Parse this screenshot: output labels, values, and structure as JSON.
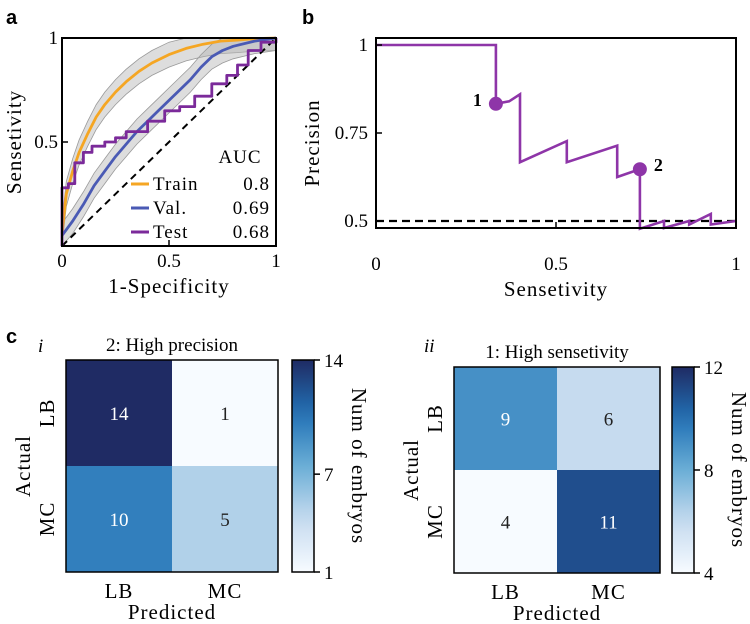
{
  "panels": {
    "a": "a",
    "b": "b",
    "c": "c",
    "ci": "i",
    "cii": "ii"
  },
  "chart_data": [
    {
      "type": "line",
      "id": "roc",
      "title": "",
      "xlabel": "1-Specificity",
      "ylabel": "Sensetivity",
      "xlim": [
        0,
        1
      ],
      "ylim": [
        0,
        1
      ],
      "xticks": [
        {
          "v": 0,
          "label": "0"
        },
        {
          "v": 0.5,
          "label": "0.5"
        },
        {
          "v": 1,
          "label": "1"
        }
      ],
      "yticks": [
        {
          "v": 0.5,
          "label": "0.5"
        },
        {
          "v": 1,
          "label": "1"
        }
      ],
      "legend": {
        "title": "AUC",
        "position": "bottom-right"
      },
      "reference_line": [
        [
          0,
          0
        ],
        [
          1,
          1
        ]
      ],
      "series": [
        {
          "name": "Train",
          "auc": "0.8",
          "color": "#f5a623",
          "band": true,
          "points": [
            [
              0,
              0.06
            ],
            [
              0.02,
              0.25
            ],
            [
              0.05,
              0.36
            ],
            [
              0.08,
              0.45
            ],
            [
              0.12,
              0.54
            ],
            [
              0.16,
              0.62
            ],
            [
              0.2,
              0.68
            ],
            [
              0.25,
              0.74
            ],
            [
              0.3,
              0.79
            ],
            [
              0.36,
              0.84
            ],
            [
              0.42,
              0.88
            ],
            [
              0.5,
              0.92
            ],
            [
              0.58,
              0.95
            ],
            [
              0.66,
              0.97
            ],
            [
              0.74,
              0.985
            ],
            [
              0.82,
              0.99
            ],
            [
              0.9,
              0.997
            ],
            [
              1,
              1
            ]
          ]
        },
        {
          "name": "Val.",
          "auc": "0.69",
          "color": "#4a5ab4",
          "band": true,
          "points": [
            [
              0,
              0.05
            ],
            [
              0.05,
              0.12
            ],
            [
              0.1,
              0.2
            ],
            [
              0.15,
              0.29
            ],
            [
              0.2,
              0.36
            ],
            [
              0.25,
              0.43
            ],
            [
              0.3,
              0.49
            ],
            [
              0.35,
              0.55
            ],
            [
              0.4,
              0.6
            ],
            [
              0.45,
              0.65
            ],
            [
              0.5,
              0.7
            ],
            [
              0.55,
              0.75
            ],
            [
              0.6,
              0.8
            ],
            [
              0.65,
              0.86
            ],
            [
              0.7,
              0.91
            ],
            [
              0.75,
              0.94
            ],
            [
              0.8,
              0.96
            ],
            [
              0.9,
              0.985
            ],
            [
              1,
              1
            ]
          ]
        },
        {
          "name": "Test",
          "auc": "0.68",
          "color": "#7b2a9a",
          "band": false,
          "points": [
            [
              0,
              0
            ],
            [
              0,
              0.28
            ],
            [
              0.03,
              0.28
            ],
            [
              0.03,
              0.3
            ],
            [
              0.06,
              0.3
            ],
            [
              0.06,
              0.4
            ],
            [
              0.1,
              0.4
            ],
            [
              0.1,
              0.45
            ],
            [
              0.14,
              0.45
            ],
            [
              0.14,
              0.48
            ],
            [
              0.2,
              0.48
            ],
            [
              0.2,
              0.5
            ],
            [
              0.25,
              0.5
            ],
            [
              0.25,
              0.52
            ],
            [
              0.3,
              0.52
            ],
            [
              0.3,
              0.55
            ],
            [
              0.4,
              0.55
            ],
            [
              0.4,
              0.6
            ],
            [
              0.48,
              0.6
            ],
            [
              0.48,
              0.65
            ],
            [
              0.55,
              0.65
            ],
            [
              0.55,
              0.67
            ],
            [
              0.62,
              0.67
            ],
            [
              0.62,
              0.72
            ],
            [
              0.7,
              0.72
            ],
            [
              0.7,
              0.78
            ],
            [
              0.77,
              0.78
            ],
            [
              0.77,
              0.82
            ],
            [
              0.82,
              0.82
            ],
            [
              0.82,
              0.87
            ],
            [
              0.87,
              0.87
            ],
            [
              0.87,
              0.94
            ],
            [
              0.93,
              0.94
            ],
            [
              0.93,
              0.98
            ],
            [
              1,
              0.98
            ],
            [
              1,
              1
            ]
          ]
        }
      ]
    },
    {
      "type": "line",
      "id": "pr",
      "title": "",
      "xlabel": "Sensetivity",
      "ylabel": "Precision",
      "xlim": [
        0,
        1
      ],
      "ylim": [
        0.48,
        1.02
      ],
      "xticks": [
        {
          "v": 0,
          "label": "0"
        },
        {
          "v": 0.5,
          "label": "0.5"
        },
        {
          "v": 1,
          "label": "1"
        }
      ],
      "yticks": [
        {
          "v": 0.5,
          "label": "0.5"
        },
        {
          "v": 0.75,
          "label": "0.75"
        },
        {
          "v": 1,
          "label": "1"
        }
      ],
      "baseline": 0.5,
      "series": [
        {
          "name": "PR curve",
          "color": "#8e35a8",
          "points": [
            [
              0,
              1
            ],
            [
              0.333,
              1
            ],
            [
              0.333,
              0.833
            ],
            [
              0.37,
              0.84
            ],
            [
              0.4,
              0.86
            ],
            [
              0.4,
              0.667
            ],
            [
              0.53,
              0.727
            ],
            [
              0.53,
              0.667
            ],
            [
              0.67,
              0.714
            ],
            [
              0.67,
              0.625
            ],
            [
              0.733,
              0.647
            ],
            [
              0.733,
              0.478
            ],
            [
              0.8,
              0.5
            ],
            [
              0.8,
              0.48
            ],
            [
              0.87,
              0.5
            ],
            [
              0.87,
              0.49
            ],
            [
              0.93,
              0.52
            ],
            [
              0.93,
              0.49
            ],
            [
              1,
              0.5
            ]
          ]
        }
      ],
      "markers": [
        {
          "label": "1",
          "x": 0.333,
          "y": 0.833,
          "side": "left"
        },
        {
          "label": "2",
          "x": 0.733,
          "y": 0.647,
          "side": "right"
        }
      ]
    },
    {
      "type": "heatmap",
      "id": "cm1",
      "title": "2: High precision",
      "xlabel": "Predicted",
      "ylabel": "Actual",
      "rows": [
        "LB",
        "MC"
      ],
      "cols": [
        "LB",
        "MC"
      ],
      "values": [
        [
          14,
          1
        ],
        [
          10,
          5
        ]
      ],
      "colorbar": {
        "label": "Num of embryos",
        "min": 1,
        "max": 14,
        "ticks": [
          {
            "v": 14,
            "label": "14"
          },
          {
            "v": 7,
            "label": "7"
          },
          {
            "v": 1,
            "label": "1"
          }
        ]
      }
    },
    {
      "type": "heatmap",
      "id": "cm2",
      "title": "1: High sensetivity",
      "xlabel": "Predicted",
      "ylabel": "Actual",
      "rows": [
        "LB",
        "MC"
      ],
      "cols": [
        "LB",
        "MC"
      ],
      "values": [
        [
          9,
          6
        ],
        [
          4,
          11
        ]
      ],
      "colorbar": {
        "label": "Num of embryos",
        "min": 4,
        "max": 12,
        "ticks": [
          {
            "v": 12,
            "label": "12"
          },
          {
            "v": 8,
            "label": "8"
          },
          {
            "v": 4,
            "label": "4"
          }
        ]
      }
    }
  ]
}
